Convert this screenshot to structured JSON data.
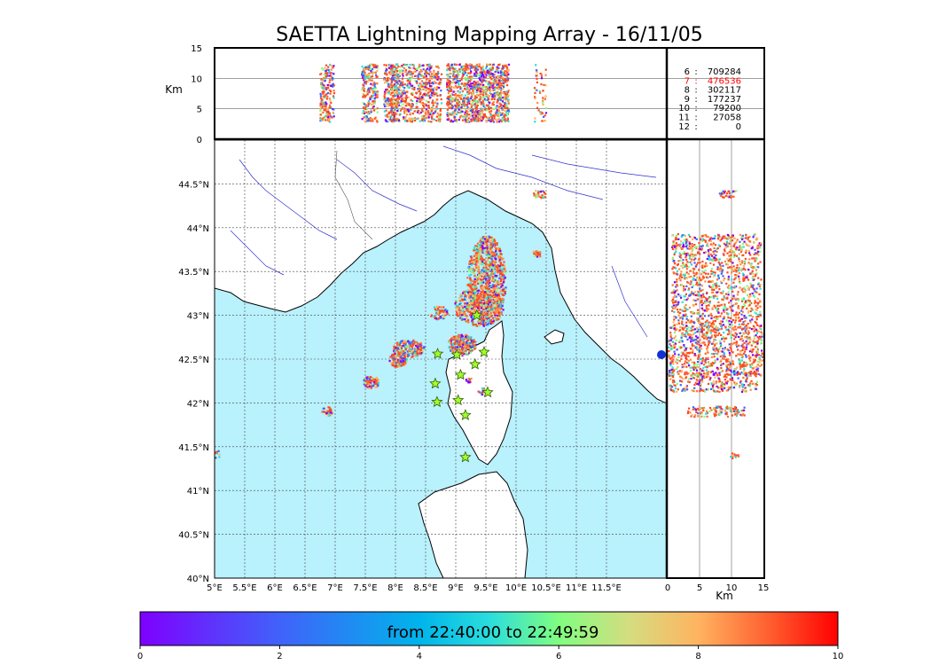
{
  "chart_data": {
    "type": "scatter",
    "title": "SAETTA Lightning Mapping Array - 16/11/05",
    "altitude_panel": {
      "ylabel": "Km",
      "yticks": [
        "0",
        "5",
        "10",
        "15"
      ],
      "ylim": [
        0,
        15
      ],
      "grid_y": [
        5,
        10
      ]
    },
    "map": {
      "xlim": [
        5,
        12.5
      ],
      "ylim": [
        40,
        45
      ],
      "lon_ticks": [
        "5°E",
        "5.5°E",
        "6°E",
        "6.5°E",
        "7°E",
        "7.5°E",
        "8°E",
        "8.5°E",
        "9°E",
        "9.5°E",
        "10°E",
        "10.5°E",
        "11°E",
        "11.5°E"
      ],
      "lat_ticks": [
        "40°N",
        "40.5°N",
        "41°N",
        "41.5°N",
        "42°N",
        "42.5°N",
        "43°N",
        "43.5°N",
        "44°N",
        "44.5°N"
      ],
      "grid": true,
      "sea_color": "#b9f1fd",
      "land_color": "#ffffff",
      "stations": [
        {
          "lon": 8.7,
          "lat": 42.56
        },
        {
          "lon": 9.02,
          "lat": 42.55
        },
        {
          "lon": 9.47,
          "lat": 42.58
        },
        {
          "lon": 9.32,
          "lat": 42.44
        },
        {
          "lon": 9.08,
          "lat": 42.32
        },
        {
          "lon": 8.66,
          "lat": 42.22
        },
        {
          "lon": 9.53,
          "lat": 42.12
        },
        {
          "lon": 8.69,
          "lat": 42.01
        },
        {
          "lon": 9.04,
          "lat": 42.03
        },
        {
          "lon": 9.16,
          "lat": 41.86
        },
        {
          "lon": 9.16,
          "lat": 41.38
        },
        {
          "lon": 9.35,
          "lat": 43.0
        }
      ]
    },
    "right_panel": {
      "xlabel": "Km",
      "xticks": [
        "0",
        "5",
        "10",
        "15"
      ],
      "xlim": [
        0,
        15
      ],
      "grid_x": [
        5,
        10
      ]
    },
    "stats": [
      {
        "label": "6",
        "value": "709284",
        "color": "#000000"
      },
      {
        "label": "7",
        "value": "476536",
        "color": "#ff0000"
      },
      {
        "label": "8",
        "value": "302117",
        "color": "#000000"
      },
      {
        "label": "9",
        "value": "177237",
        "color": "#000000"
      },
      {
        "label": "10",
        "value": "79200",
        "color": "#000000"
      },
      {
        "label": "11",
        "value": "27058",
        "color": "#000000"
      },
      {
        "label": "12",
        "value": "0",
        "color": "#000000"
      }
    ],
    "colorbar": {
      "label": "from 22:40:00 to 22:49:59",
      "ticks": [
        "0",
        "2",
        "4",
        "6",
        "8",
        "10"
      ],
      "range": [
        0,
        10
      ]
    }
  }
}
